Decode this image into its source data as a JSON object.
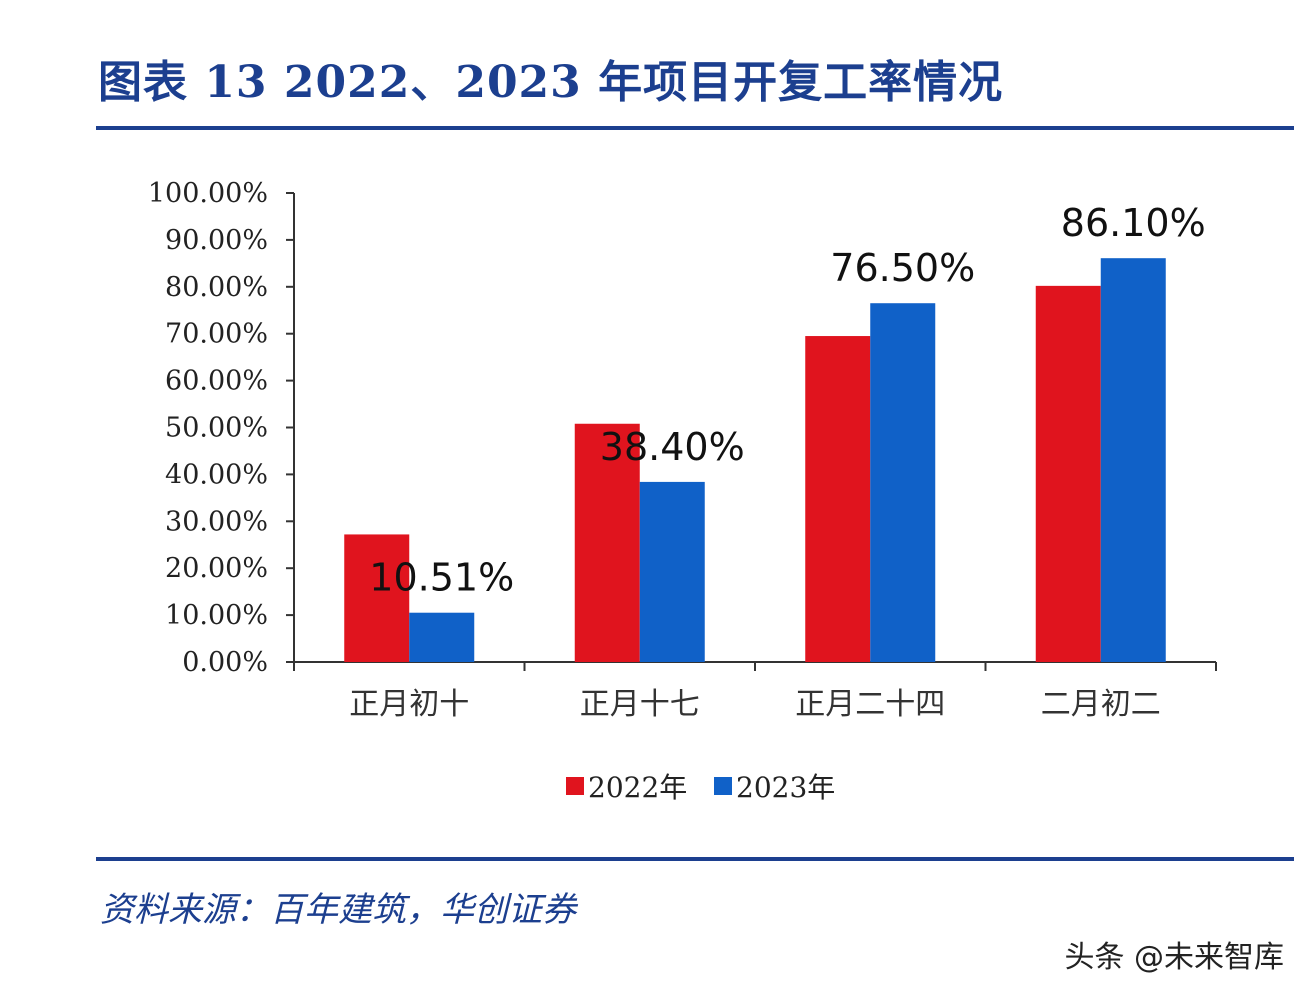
{
  "title": "图表 13   2022、2023 年项目开复工率情况",
  "source": "资料来源：百年建筑，华创证券",
  "watermark": "头条 @未来智库",
  "chart_data": {
    "type": "bar",
    "categories": [
      "正月初十",
      "正月十七",
      "正月二十四",
      "二月初二"
    ],
    "series": [
      {
        "name": "2022年",
        "color": "#e0141e",
        "values": [
          27.2,
          50.8,
          69.5,
          80.2
        ]
      },
      {
        "name": "2023年",
        "color": "#1061c8",
        "values": [
          10.51,
          38.4,
          76.5,
          86.1
        ]
      }
    ],
    "data_labels": [
      "10.51%",
      "38.40%",
      "76.50%",
      "86.10%"
    ],
    "y_ticks": [
      "0.00%",
      "10.00%",
      "20.00%",
      "30.00%",
      "40.00%",
      "50.00%",
      "60.00%",
      "70.00%",
      "80.00%",
      "90.00%",
      "100.00%"
    ],
    "ylim": [
      0,
      100
    ],
    "grid": false,
    "legend": "bottom"
  }
}
